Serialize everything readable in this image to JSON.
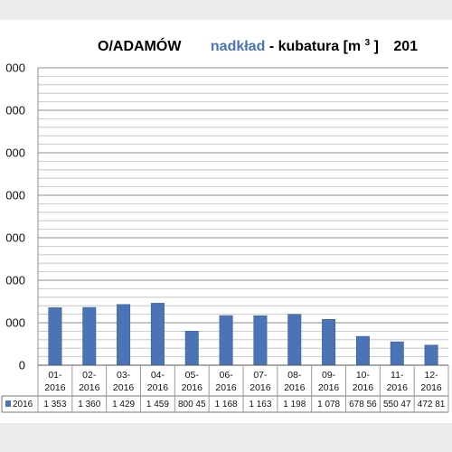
{
  "chart_data": {
    "type": "bar",
    "title_parts": {
      "location": "O/ADAMÓW",
      "highlight": "nadkład",
      "rest": " - kubatura [m",
      "superscript": "3",
      "close": "]",
      "year": "201"
    },
    "categories": [
      [
        "01-",
        "2016"
      ],
      [
        "02-",
        "2016"
      ],
      [
        "03-",
        "2016"
      ],
      [
        "04-",
        "2016"
      ],
      [
        "05-",
        "2016"
      ],
      [
        "06-",
        "2016"
      ],
      [
        "07-",
        "2016"
      ],
      [
        "08-",
        "2016"
      ],
      [
        "09-",
        "2016"
      ],
      [
        "10-",
        "2016"
      ],
      [
        "11-",
        "2016"
      ],
      [
        "12-",
        "2016"
      ]
    ],
    "series": [
      {
        "name": "2016",
        "values": [
          1353,
          1360,
          1429,
          1459,
          800.45,
          1168,
          1163,
          1198,
          1078,
          678.56,
          550.47,
          472.81
        ],
        "value_labels": [
          "1 353",
          "1 360",
          "1 429",
          "1 459",
          "800 45",
          "1 168",
          "1 163",
          "1 198",
          "1 078",
          "678 56",
          "550 47",
          "472 81"
        ]
      }
    ],
    "y_tick_labels": [
      "000",
      "000",
      "000",
      "000",
      "000",
      "000",
      "000",
      "0"
    ],
    "ylim": [
      0,
      7000
    ],
    "y_step": 1000,
    "minor_grid_step": 200,
    "grid": true,
    "legend_placement": "data-table"
  },
  "colors": {
    "bar": "#4a74b6",
    "bar_edge": "#3a5f99",
    "highlight_text": "#4a74b6",
    "grid": "#bdbdbd",
    "axis": "#8c8c8c"
  }
}
